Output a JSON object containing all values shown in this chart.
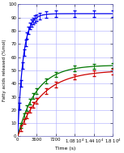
{
  "title": "",
  "xlabel": "Time (s)",
  "ylabel": "Fatty acids released (%mol)",
  "xlim": [
    0,
    18000
  ],
  "ylim": [
    0,
    100
  ],
  "yticks": [
    0,
    10,
    20,
    30,
    40,
    50,
    60,
    70,
    80,
    90,
    100
  ],
  "blue_color": "#0000ee",
  "green_color": "#007700",
  "red_color": "#cc0000",
  "background_color": "#ffffff",
  "grid_color": "#aaaaff",
  "blue_params": {
    "Vmax": 93.0,
    "k": 0.00095
  },
  "green_params": {
    "Vmax": 54.0,
    "k": 0.00028
  },
  "red_params": {
    "Vmax": 50.0,
    "k": 0.000215
  },
  "blue_error": 2.5,
  "green_error": 2.0,
  "red_error": 2.0,
  "dense_err_x_blue": [
    300,
    600,
    900,
    1200,
    1500,
    1800,
    2100,
    2400,
    2700,
    3000,
    3300,
    3600,
    4200,
    5400,
    7200,
    10800,
    14400,
    18000
  ],
  "dense_err_x_green": [
    600,
    1200,
    1800,
    2400,
    3000,
    3600,
    5400,
    7200,
    10800,
    14400,
    18000
  ],
  "dense_err_x_red": [
    600,
    1200,
    1800,
    2400,
    3000,
    3600,
    5400,
    7200,
    10800,
    14400,
    18000
  ],
  "figsize": [
    1.53,
    1.89
  ],
  "dpi": 100
}
